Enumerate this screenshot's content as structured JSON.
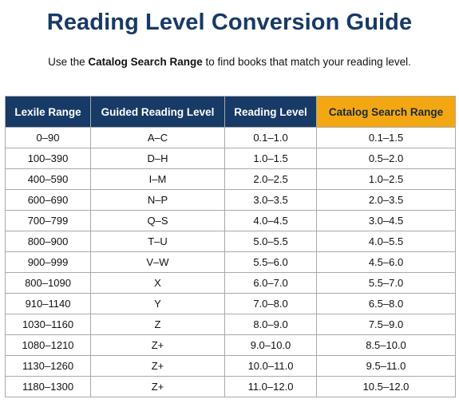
{
  "title": "Reading Level Conversion Guide",
  "intro": {
    "prefix": "Use the ",
    "highlight": "Catalog Search Range",
    "suffix": " to find books that match your reading level."
  },
  "colors": {
    "title": "#173a66",
    "header_background": "#173a66",
    "accent_header_background": "#f3a712"
  },
  "table": {
    "headers": [
      "Lexile Range",
      "Guided Reading Level",
      "Reading Level",
      "Catalog Search Range"
    ],
    "rows": [
      [
        "0–90",
        "A–C",
        "0.1–1.0",
        "0.1–1.5"
      ],
      [
        "100–390",
        "D–H",
        "1.0–1.5",
        "0.5–2.0"
      ],
      [
        "400–590",
        "I–M",
        "2.0–2.5",
        "1.0–2.5"
      ],
      [
        "600–690",
        "N–P",
        "3.0–3.5",
        "2.0–3.5"
      ],
      [
        "700–799",
        "Q–S",
        "4.0–4.5",
        "3.0–4.5"
      ],
      [
        "800–900",
        "T–U",
        "5.0–5.5",
        "4.0–5.5"
      ],
      [
        "900–999",
        "V–W",
        "5.5–6.0",
        "4.5–6.0"
      ],
      [
        "800–1090",
        "X",
        "6.0–7.0",
        "5.5–7.0"
      ],
      [
        "910–1140",
        "Y",
        "7.0–8.0",
        "6.5–8.0"
      ],
      [
        "1030–1160",
        "Z",
        "8.0–9.0",
        "7.5–9.0"
      ],
      [
        "1080–1210",
        "Z+",
        "9.0–10.0",
        "8.5–10.0"
      ],
      [
        "1130–1260",
        "Z+",
        "10.0–11.0",
        "9.5–11.0"
      ],
      [
        "1180–1300",
        "Z+",
        "11.0–12.0",
        "10.5–12.0"
      ]
    ]
  }
}
